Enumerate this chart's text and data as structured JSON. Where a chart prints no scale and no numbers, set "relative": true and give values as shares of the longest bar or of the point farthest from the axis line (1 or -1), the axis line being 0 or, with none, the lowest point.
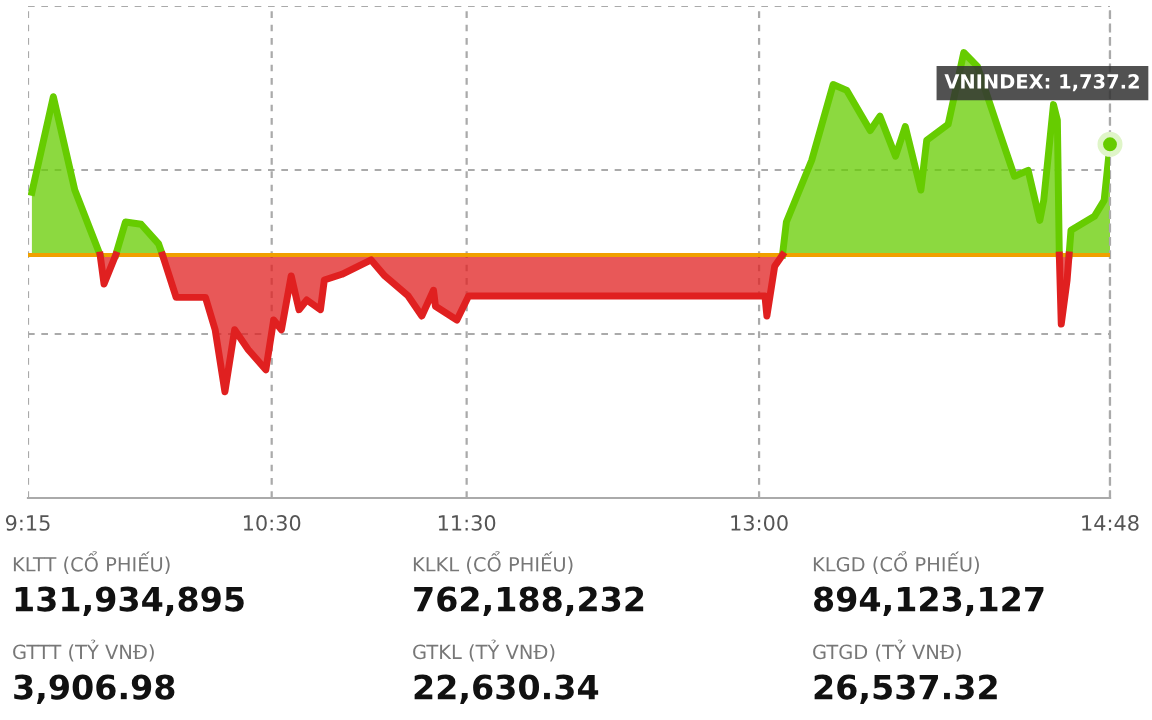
{
  "chart_data": {
    "type": "area",
    "relative": true,
    "xlim": [
      9.25,
      14.8
    ],
    "xticks": [
      {
        "value": 9.25,
        "label": "9:15"
      },
      {
        "value": 10.5,
        "label": "10:30"
      },
      {
        "value": 11.5,
        "label": "11:30"
      },
      {
        "value": 13,
        "label": "13:00"
      },
      {
        "value": 14.8,
        "label": "14:48"
      }
    ],
    "tick_labels": "x",
    "grid": true,
    "legend": false,
    "ref_lines": [
      {
        "axis": "y",
        "value": 0,
        "color": "#f0a000"
      }
    ],
    "series": [
      {
        "color": "#66cc00",
        "x": [
          9.27,
          9.38,
          9.49,
          9.57,
          9.62,
          9.66,
          9.7,
          9.75,
          9.83,
          9.92,
          9.94,
          10.5,
          13.12,
          13.14,
          13.27,
          13.38,
          13.45,
          13.57,
          13.62,
          13.7,
          13.75,
          13.83,
          13.86,
          13.97,
          14.05,
          14.12,
          14.23,
          14.31,
          14.38,
          14.44,
          14.46,
          14.51,
          14.53,
          14.54,
          14.56,
          14.59,
          14.6,
          14.72,
          14.77,
          14.8
        ],
        "values": [
          0.31,
          0.782,
          0.321,
          0.123,
          0,
          null,
          0,
          0.163,
          0.152,
          0.055,
          0,
          null,
          0,
          0.163,
          0.468,
          0.842,
          0.813,
          0.615,
          0.686,
          0.488,
          0.635,
          0.321,
          0.567,
          0.646,
          1.0,
          0.932,
          0.615,
          0.389,
          0.418,
          0.171,
          0.27,
          0.743,
          0.666,
          0,
          null,
          0,
          0.123,
          0.191,
          0.27,
          0.547
        ]
      },
      {
        "color": "#e02020",
        "x": [
          9.62,
          9.64,
          9.7,
          9.8,
          9.94,
          10.01,
          10.16,
          10.21,
          10.26,
          10.31,
          10.38,
          10.47,
          10.51,
          10.55,
          10.6,
          10.64,
          10.68,
          10.75,
          10.77,
          10.86,
          11.01,
          11.08,
          11.2,
          11.27,
          11.33,
          11.34,
          11.45,
          11.51,
          13.03,
          13.04,
          13.08,
          13.12,
          13.5,
          14.54,
          14.55,
          14.58,
          14.59
        ],
        "values": [
          0,
          -0.143,
          0,
          null,
          0,
          -0.209,
          -0.209,
          -0.369,
          -0.675,
          -0.369,
          -0.468,
          -0.567,
          -0.321,
          -0.369,
          -0.103,
          -0.27,
          -0.222,
          -0.27,
          -0.123,
          -0.095,
          -0.024,
          -0.103,
          -0.202,
          -0.301,
          -0.174,
          -0.253,
          -0.321,
          -0.202,
          -0.202,
          -0.301,
          -0.055,
          0,
          null,
          0,
          -0.341,
          -0.123,
          0
        ]
      }
    ],
    "annotations": [
      {
        "text": "VNINDEX: 1,737.2",
        "x": 14.8,
        "y": 0.547
      },
      "KLTT (CỔ PHIẾU)",
      "131,934,895",
      "KLKL (CỔ PHIẾU)",
      "762,188,232",
      "KLGD (CỔ PHIẾU)",
      "894,123,127",
      "GTTT (TỶ VNĐ)",
      "3,906.98",
      "GTKL (TỶ VNĐ)",
      "22,630.34",
      "GTGD (TỶ VNĐ)",
      "26,537.32"
    ]
  }
}
